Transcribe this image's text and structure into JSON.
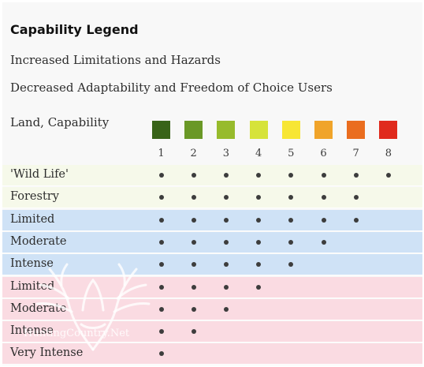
{
  "legend": {
    "title": "Capability Legend",
    "line1": "Increased Limitations and Hazards",
    "line2": "Decreased Adaptability and Freedom of Choice Users",
    "corner_label": "Land, Capability"
  },
  "classes": [
    {
      "number": "1",
      "color": "#386318"
    },
    {
      "number": "2",
      "color": "#6a9826"
    },
    {
      "number": "3",
      "color": "#97bb2c"
    },
    {
      "number": "4",
      "color": "#d6e33a"
    },
    {
      "number": "5",
      "color": "#f7e634"
    },
    {
      "number": "6",
      "color": "#f0a42a"
    },
    {
      "number": "7",
      "color": "#ea6d1f"
    },
    {
      "number": "8",
      "color": "#e02a1d"
    }
  ],
  "rows": [
    {
      "label": "'Wild Life'",
      "group": "green",
      "max_class": 8
    },
    {
      "label": "Forestry",
      "group": "green",
      "max_class": 7
    },
    {
      "label": "Limited",
      "group": "blue",
      "max_class": 7
    },
    {
      "label": "Moderate",
      "group": "blue",
      "max_class": 6
    },
    {
      "label": "Intense",
      "group": "blue",
      "max_class": 5
    },
    {
      "label": "Limited",
      "group": "pink",
      "max_class": 4
    },
    {
      "label": "Moderate",
      "group": "pink",
      "max_class": 3
    },
    {
      "label": "Intense",
      "group": "pink",
      "max_class": 2
    },
    {
      "label": "Very Intense",
      "group": "pink",
      "max_class": 1
    }
  ],
  "group_colors": {
    "green": "#f6f9ea",
    "blue": "#cfe2f6",
    "pink": "#fadbe2"
  },
  "watermark": {
    "text": "HuntingCountry.Net",
    "icon": "antlers-icon"
  }
}
